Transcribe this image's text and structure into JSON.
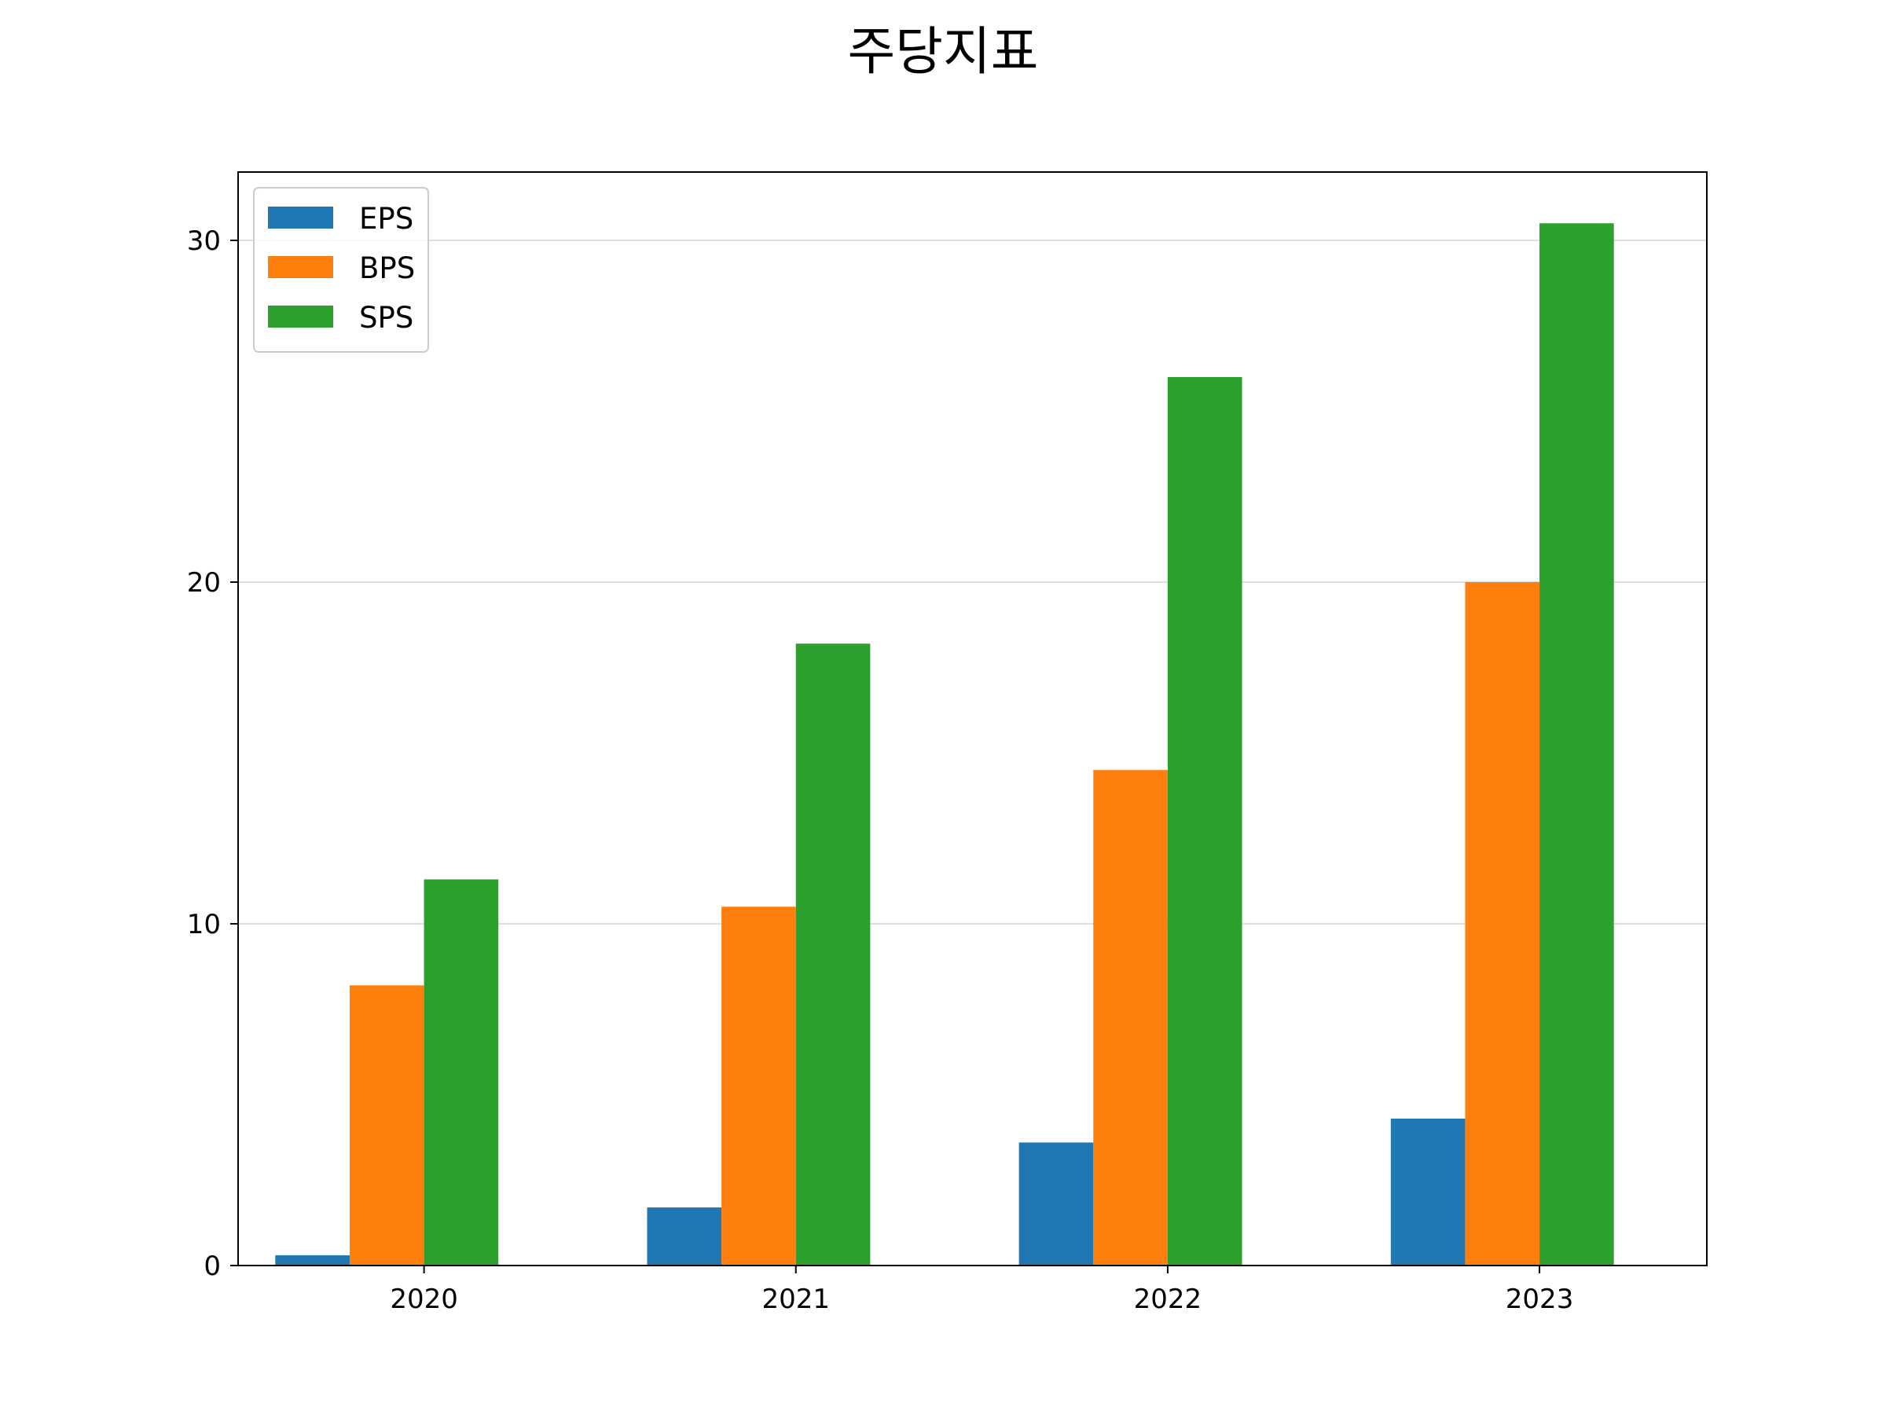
{
  "chart_data": {
    "type": "bar",
    "title": "주당지표",
    "xlabel": "",
    "ylabel": "",
    "categories": [
      "2020",
      "2021",
      "2022",
      "2023"
    ],
    "series": [
      {
        "name": "EPS",
        "values": [
          0.3,
          1.7,
          3.6,
          4.3
        ],
        "color": "#1f77b4"
      },
      {
        "name": "BPS",
        "values": [
          8.2,
          10.5,
          14.5,
          20.0
        ],
        "color": "#ff7f0e"
      },
      {
        "name": "SPS",
        "values": [
          11.3,
          18.2,
          26.0,
          30.5
        ],
        "color": "#2ca02c"
      }
    ],
    "ylim": [
      0,
      32
    ],
    "yticks": [
      0,
      10,
      20,
      30
    ],
    "ytick_labels": [
      "0",
      "10",
      "20",
      "30"
    ],
    "grid": {
      "y": true,
      "x": false,
      "color": "#d3d3d3"
    },
    "legend_position": "top-left"
  }
}
